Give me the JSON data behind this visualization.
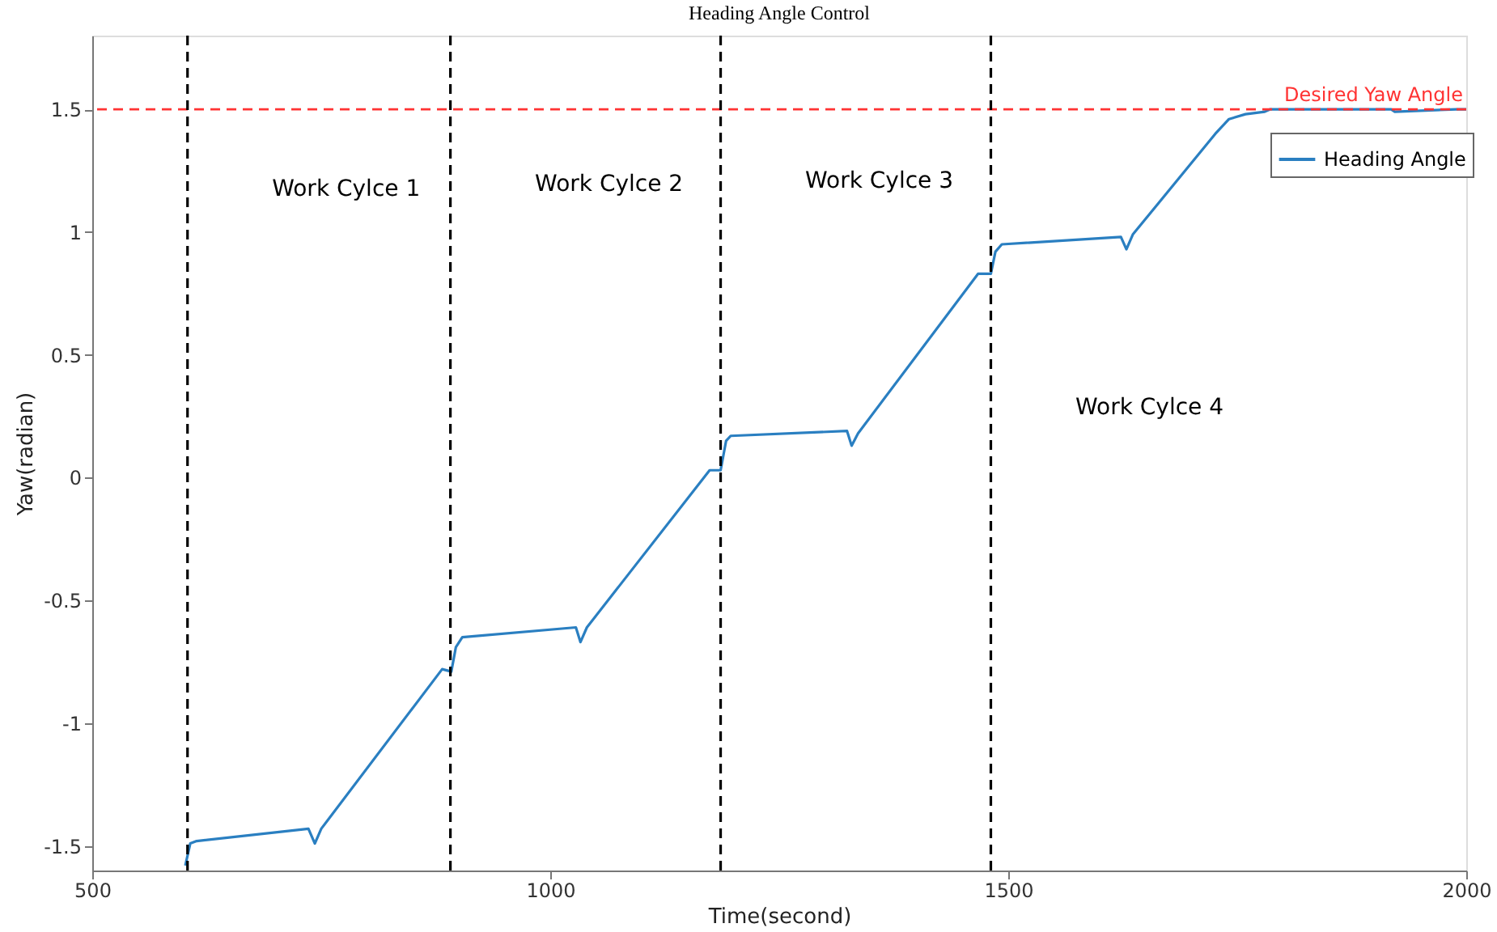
{
  "chart_data": {
    "type": "line",
    "title": "Heading Angle Control",
    "xlabel": "Time(second)",
    "ylabel": "Yaw(radian)",
    "x": [
      601.6,
      607,
      614,
      736,
      743,
      750,
      882,
      892,
      897,
      904,
      1028,
      1033,
      1040,
      1174,
      1186,
      1192,
      1197,
      1324,
      1329,
      1336,
      1467,
      1481,
      1486,
      1493,
      1623,
      1629,
      1636,
      1726,
      1741,
      1759,
      1780,
      1786,
      1918,
      1922,
      1989,
      2000
    ],
    "series": [
      {
        "name": "Heading Angle",
        "color": "#2a7fc1",
        "values": [
          -1.58,
          -1.49,
          -1.48,
          -1.43,
          -1.49,
          -1.43,
          -0.78,
          -0.79,
          -0.69,
          -0.65,
          -0.61,
          -0.67,
          -0.61,
          0.03,
          0.03,
          0.15,
          0.17,
          0.19,
          0.13,
          0.18,
          0.83,
          0.83,
          0.92,
          0.95,
          0.98,
          0.93,
          0.99,
          1.4,
          1.46,
          1.48,
          1.49,
          1.5,
          1.5,
          1.49,
          1.5,
          1.5
        ]
      }
    ],
    "xlim": [
      500,
      2000
    ],
    "ylim": [
      -1.6,
      1.8
    ],
    "xticks": [
      500,
      1000,
      1500,
      2000
    ],
    "yticks": [
      -1.5,
      -1,
      -0.5,
      0,
      0.5,
      1,
      1.5
    ],
    "ref_lines": [
      {
        "axis": "y",
        "value": 1.5,
        "label": "Desired Yaw Angle",
        "color": "#ff3333",
        "line_style": "dashed"
      },
      {
        "axis": "x",
        "value": 604,
        "color": "#000000",
        "line_style": "dashed"
      },
      {
        "axis": "x",
        "value": 891,
        "color": "#000000",
        "line_style": "dashed"
      },
      {
        "axis": "x",
        "value": 1186,
        "color": "#000000",
        "line_style": "dashed"
      },
      {
        "axis": "x",
        "value": 1481,
        "color": "#000000",
        "line_style": "dashed"
      }
    ],
    "annotations": [
      "Work Cylce 1",
      "Work Cylce 2",
      "Work Cylce 3",
      "Work Cylce 4"
    ],
    "legend": "top right",
    "grid": false,
    "line_style": "solid",
    "marker": "none"
  }
}
